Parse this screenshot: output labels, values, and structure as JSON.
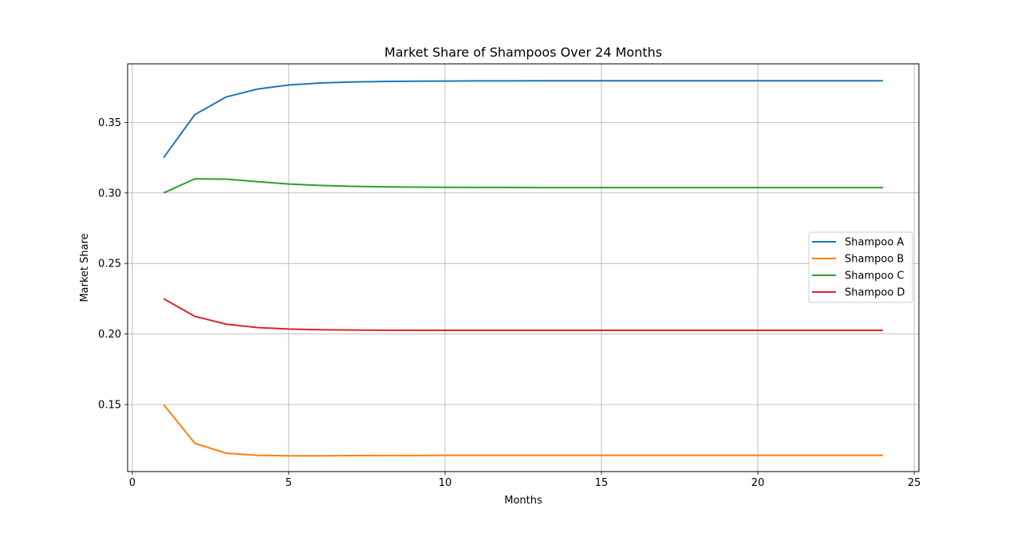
{
  "chart_data": {
    "type": "line",
    "title": "Market Share of Shampoos Over 24 Months",
    "xlabel": "Months",
    "ylabel": "Market Share",
    "xlim": [
      -0.15,
      25.15
    ],
    "ylim": [
      0.1025,
      0.3915
    ],
    "xticks": [
      0,
      5,
      10,
      15,
      20,
      25
    ],
    "yticks": [
      0.15,
      0.2,
      0.25,
      0.3,
      0.35
    ],
    "ytick_labels": [
      "0.15",
      "0.20",
      "0.25",
      "0.30",
      "0.35"
    ],
    "grid": true,
    "legend_position": "center-right",
    "x": [
      1,
      2,
      3,
      4,
      5,
      6,
      7,
      8,
      9,
      10,
      11,
      12,
      13,
      14,
      15,
      16,
      17,
      18,
      19,
      20,
      21,
      22,
      23,
      24
    ],
    "series": [
      {
        "name": "Shampoo A",
        "color": "#1f77b4",
        "values": [
          0.325,
          0.3555,
          0.368,
          0.3736,
          0.3765,
          0.3779,
          0.3786,
          0.379,
          0.3792,
          0.3793,
          0.3794,
          0.3794,
          0.3795,
          0.3795,
          0.3795,
          0.3795,
          0.3795,
          0.3795,
          0.3795,
          0.3795,
          0.3795,
          0.3795,
          0.3795,
          0.3795
        ]
      },
      {
        "name": "Shampoo B",
        "color": "#ff7f0e",
        "values": [
          0.15,
          0.1225,
          0.1155,
          0.114,
          0.1137,
          0.1137,
          0.1138,
          0.1139,
          0.1139,
          0.114,
          0.114,
          0.114,
          0.114,
          0.114,
          0.114,
          0.114,
          0.114,
          0.114,
          0.114,
          0.114,
          0.114,
          0.114,
          0.114,
          0.114
        ]
      },
      {
        "name": "Shampoo C",
        "color": "#2ca02c",
        "values": [
          0.3,
          0.31,
          0.3098,
          0.308,
          0.3063,
          0.3053,
          0.3047,
          0.3043,
          0.3041,
          0.304,
          0.3039,
          0.3039,
          0.3038,
          0.3038,
          0.3038,
          0.3038,
          0.3038,
          0.3038,
          0.3038,
          0.3038,
          0.3038,
          0.3038,
          0.3038,
          0.3038
        ]
      },
      {
        "name": "Shampoo D",
        "color": "#d62728",
        "values": [
          0.225,
          0.2125,
          0.207,
          0.2046,
          0.2035,
          0.203,
          0.2028,
          0.2027,
          0.2026,
          0.2026,
          0.2026,
          0.2026,
          0.2026,
          0.2026,
          0.2026,
          0.2026,
          0.2026,
          0.2026,
          0.2026,
          0.2026,
          0.2026,
          0.2026,
          0.2026,
          0.2026
        ]
      }
    ]
  }
}
